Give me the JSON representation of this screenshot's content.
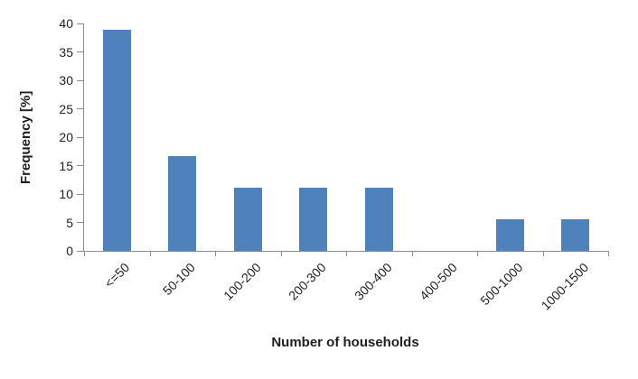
{
  "chart_data": {
    "type": "bar",
    "categories": [
      "<=50",
      "50-100",
      "100-200",
      "200-300",
      "300-400",
      "400-500",
      "500-1000",
      "1000-1500"
    ],
    "values": [
      38.9,
      16.7,
      11.1,
      11.1,
      11.1,
      0,
      5.6,
      5.6
    ],
    "title": "",
    "xlabel": "Number of households",
    "ylabel": "Frequency [%]",
    "ylim": [
      0,
      40
    ],
    "ytick_step": 5,
    "ytick_labels": [
      "0",
      "5",
      "10",
      "15",
      "20",
      "25",
      "30",
      "35",
      "40"
    ],
    "grid": false,
    "legend": false,
    "bar_color": "#4F81BD",
    "axis_color": "#8C8C8C",
    "text_color": "#1f1f1f"
  }
}
